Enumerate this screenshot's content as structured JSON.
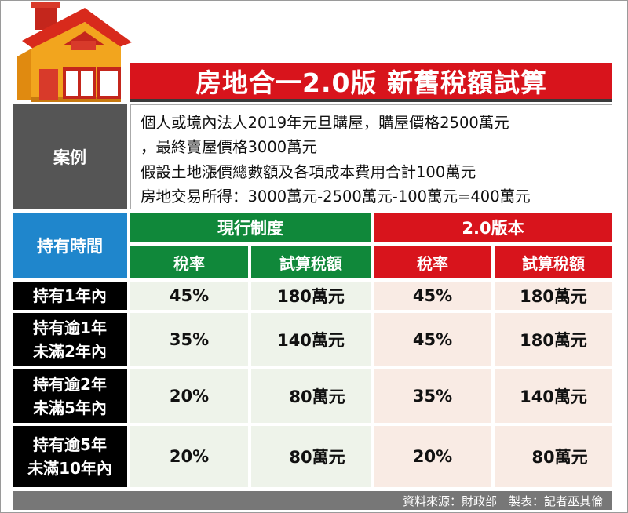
{
  "title": "房地合一2.0版 新舊稅額試算",
  "case": {
    "label": "案例",
    "lines": [
      "個人或境內法人2019年元旦購屋，購屋價格2500萬元",
      "，最終賣屋價格3000萬元",
      "假設土地漲價總數額及各項成本費用合計100萬元",
      "房地交易所得：3000萬元-2500萬元-100萬元=400萬元"
    ]
  },
  "table": {
    "holding_header": "持有時間",
    "groups": [
      "現行制度",
      "2.0版本"
    ],
    "sub_headers": [
      "稅率",
      "試算稅額",
      "稅率",
      "試算稅額"
    ],
    "rows": [
      {
        "label": [
          "持有1年內"
        ],
        "values": [
          "45%",
          "180萬元",
          "45%",
          "180萬元"
        ]
      },
      {
        "label": [
          "持有逾1年",
          "未滿2年內"
        ],
        "values": [
          "35%",
          "140萬元",
          "45%",
          "180萬元"
        ]
      },
      {
        "label": [
          "持有逾2年",
          "未滿5年內"
        ],
        "values": [
          "20%",
          "80萬元",
          "35%",
          "140萬元"
        ]
      },
      {
        "label": [
          "持有逾5年",
          "未滿10年內"
        ],
        "values": [
          "20%",
          "80萬元",
          "20%",
          "80萬元"
        ]
      }
    ]
  },
  "footer": "資料來源：財政部　製表：記者巫其倫",
  "colors": {
    "title_red": "#d8141c",
    "current_green": "#10883a",
    "v2_red": "#d8141c",
    "holding_blue": "#1f86cc",
    "house_orange": "#f0a020"
  },
  "icons": [
    "house-icon"
  ]
}
